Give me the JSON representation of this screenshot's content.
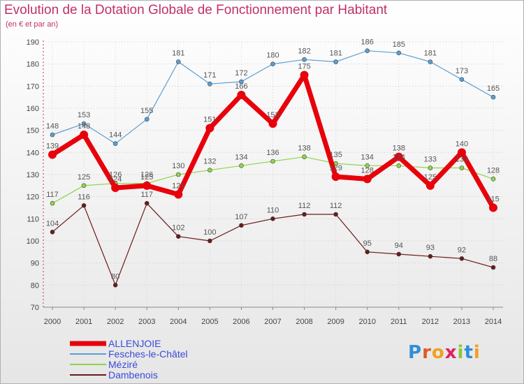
{
  "title": "Evolution de la Dotation Globale de Fonctionnement par Habitant",
  "subtitle": "(en € et par an)",
  "logo": {
    "text": "Proxiti",
    "letter_colors": [
      "#2e8fd9",
      "#e05a1e",
      "#f0a020",
      "#e02060",
      "#8cc63f",
      "#2e8fd9",
      "#f0a020"
    ]
  },
  "chart_data": {
    "type": "line",
    "title": "Evolution de la Dotation Globale de Fonctionnement par Habitant",
    "subtitle": "(en € et par an)",
    "xlabel": "",
    "ylabel": "",
    "x": [
      "2000",
      "2001",
      "2002",
      "2003",
      "2004",
      "2005",
      "2006",
      "2007",
      "2008",
      "2009",
      "2010",
      "2011",
      "2012",
      "2013",
      "2014"
    ],
    "ylim": [
      70,
      190
    ],
    "yticks": [
      70,
      80,
      90,
      100,
      110,
      120,
      130,
      140,
      150,
      160,
      170,
      180,
      190
    ],
    "grid": true,
    "legend_position": "bottom-left",
    "series": [
      {
        "name": "ALLENJOIE",
        "color": "#e8000b",
        "values": [
          139,
          148,
          124,
          125,
          121,
          151,
          166,
          153,
          175,
          129,
          128,
          138,
          125,
          140,
          115
        ]
      },
      {
        "name": "Fesches-le-Châtel",
        "color": "#5a9fd4",
        "values": [
          148,
          153,
          144,
          155,
          181,
          171,
          172,
          180,
          182,
          181,
          186,
          185,
          181,
          173,
          165
        ]
      },
      {
        "name": "Méziré",
        "color": "#8fd44a",
        "values": [
          117,
          125,
          126,
          126,
          130,
          132,
          134,
          136,
          138,
          135,
          134,
          134,
          133,
          133,
          128
        ]
      },
      {
        "name": "Dambenois",
        "color": "#6b1a1a",
        "values": [
          104,
          116,
          80,
          117,
          102,
          100,
          107,
          110,
          112,
          112,
          95,
          94,
          93,
          92,
          88
        ]
      }
    ]
  }
}
